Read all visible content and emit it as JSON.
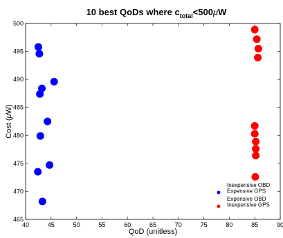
{
  "chart_data": {
    "type": "scatter",
    "title": {
      "prefix": "10 best QoDs where c",
      "subscript": "total",
      "suffix": "<500",
      "greek": "μ",
      "unit": "W"
    },
    "xlabel": "QoD (unitless)",
    "ylabel": {
      "prefix": "Cost (",
      "greek": "μ",
      "suffix": "W)"
    },
    "xlim": [
      40,
      90
    ],
    "ylim": [
      465,
      500
    ],
    "xticks": [
      40,
      45,
      50,
      55,
      60,
      65,
      70,
      75,
      80,
      85,
      90
    ],
    "yticks": [
      465,
      470,
      475,
      480,
      485,
      490,
      495,
      500
    ],
    "grid": false,
    "legend_position": "bottom-right",
    "series": [
      {
        "name": "Inexpensive OBD\nExpensive GPS",
        "legend_lines": [
          "Inexpensive OBD",
          "Expensive GPS"
        ],
        "color": "#0000ff",
        "points": [
          {
            "x": 42.5,
            "y": 495.8
          },
          {
            "x": 42.7,
            "y": 494.6
          },
          {
            "x": 45.6,
            "y": 489.6
          },
          {
            "x": 43.2,
            "y": 488.4
          },
          {
            "x": 42.8,
            "y": 487.4
          },
          {
            "x": 44.3,
            "y": 482.5
          },
          {
            "x": 42.9,
            "y": 479.9
          },
          {
            "x": 44.7,
            "y": 474.7
          },
          {
            "x": 42.4,
            "y": 473.5
          },
          {
            "x": 43.3,
            "y": 468.2
          }
        ]
      },
      {
        "name": "Expensive OBD\nInexpensive GPS",
        "legend_lines": [
          "Expensive OBD",
          "Inexpensive GPS"
        ],
        "color": "#ff0000",
        "points": [
          {
            "x": 85.0,
            "y": 498.9
          },
          {
            "x": 85.4,
            "y": 497.2
          },
          {
            "x": 85.7,
            "y": 495.5
          },
          {
            "x": 85.6,
            "y": 493.9
          },
          {
            "x": 85.0,
            "y": 481.7
          },
          {
            "x": 85.0,
            "y": 480.3
          },
          {
            "x": 85.2,
            "y": 478.9
          },
          {
            "x": 85.2,
            "y": 477.6
          },
          {
            "x": 85.2,
            "y": 476.4
          },
          {
            "x": 85.1,
            "y": 472.6
          }
        ]
      }
    ]
  }
}
